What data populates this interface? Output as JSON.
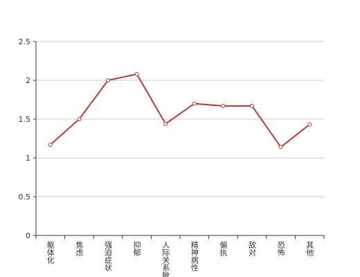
{
  "chart_data": {
    "type": "line",
    "categories": [
      "躯体化",
      "焦虑",
      "强迫症状",
      "抑郁",
      "人际关系敏感",
      "精神病性",
      "偏执",
      "敌对",
      "恐怖",
      "其他"
    ],
    "values": [
      1.17,
      1.5,
      2.0,
      2.08,
      1.44,
      1.7,
      1.67,
      1.67,
      1.14,
      1.43
    ],
    "color": "#c23531",
    "ylim": [
      0,
      2.5
    ],
    "yticks": [
      0,
      0.5,
      1,
      1.5,
      2,
      2.5
    ],
    "grid": true
  }
}
